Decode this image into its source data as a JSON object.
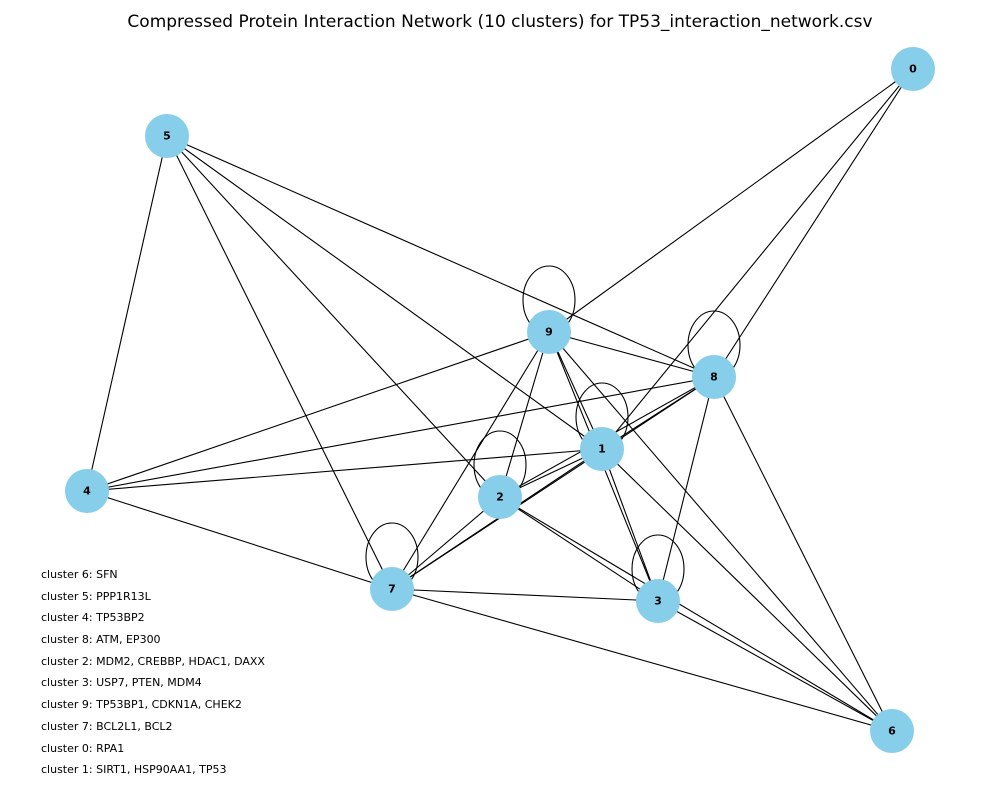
{
  "title": "Compressed Protein Interaction Network (10 clusters) for TP53_interaction_network.csv",
  "node_color": "#87ceeb",
  "edge_color": "#000000",
  "nodes": [
    {
      "id": "0",
      "label": "0"
    },
    {
      "id": "1",
      "label": "1"
    },
    {
      "id": "2",
      "label": "2"
    },
    {
      "id": "3",
      "label": "3"
    },
    {
      "id": "4",
      "label": "4"
    },
    {
      "id": "5",
      "label": "5"
    },
    {
      "id": "6",
      "label": "6"
    },
    {
      "id": "7",
      "label": "7"
    },
    {
      "id": "8",
      "label": "8"
    },
    {
      "id": "9",
      "label": "9"
    }
  ],
  "edges": [
    [
      "0",
      "9"
    ],
    [
      "0",
      "1"
    ],
    [
      "0",
      "8"
    ],
    [
      "5",
      "4"
    ],
    [
      "5",
      "7"
    ],
    [
      "5",
      "2"
    ],
    [
      "5",
      "1"
    ],
    [
      "5",
      "8"
    ],
    [
      "9",
      "8"
    ],
    [
      "9",
      "4"
    ],
    [
      "9",
      "7"
    ],
    [
      "9",
      "2"
    ],
    [
      "9",
      "1"
    ],
    [
      "9",
      "3"
    ],
    [
      "9",
      "6"
    ],
    [
      "8",
      "4"
    ],
    [
      "8",
      "1"
    ],
    [
      "8",
      "2"
    ],
    [
      "8",
      "7"
    ],
    [
      "8",
      "3"
    ],
    [
      "8",
      "6"
    ],
    [
      "1",
      "4"
    ],
    [
      "1",
      "2"
    ],
    [
      "1",
      "7"
    ],
    [
      "1",
      "3"
    ],
    [
      "1",
      "6"
    ],
    [
      "2",
      "7"
    ],
    [
      "2",
      "3"
    ],
    [
      "2",
      "6"
    ],
    [
      "4",
      "7"
    ],
    [
      "7",
      "3"
    ],
    [
      "7",
      "6"
    ],
    [
      "3",
      "6"
    ]
  ],
  "self_loops": [
    "9",
    "8",
    "1",
    "2",
    "7",
    "3"
  ],
  "legend": [
    "cluster 6: SFN",
    "cluster 5: PPP1R13L",
    "cluster 4: TP53BP2",
    "cluster 8: ATM, EP300",
    "cluster 2: MDM2, CREBBP, HDAC1, DAXX",
    "cluster 3: USP7, PTEN, MDM4",
    "cluster 9: TP53BP1, CDKN1A, CHEK2",
    "cluster 7: BCL2L1, BCL2",
    "cluster 0: RPA1",
    "cluster 1: SIRT1, HSP90AA1, TP53"
  ]
}
